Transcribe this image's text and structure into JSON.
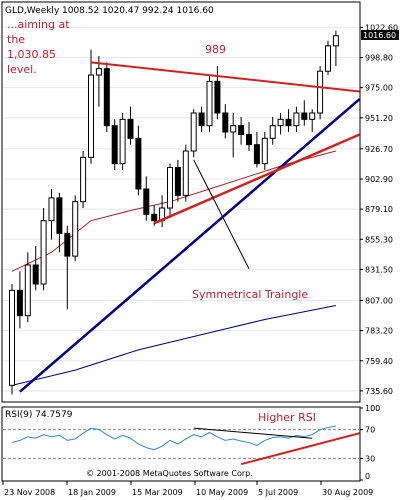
{
  "chart_data": {
    "type": "candlestick",
    "header": {
      "symbol": "GLD,Weekly",
      "ohlc": "1008.52 1020.47 992.24 1016.60"
    },
    "price_axis": {
      "ticks": [
        1022.6,
        998.8,
        975.0,
        951.2,
        926.7,
        902.9,
        879.1,
        855.3,
        831.5,
        807.0,
        783.2,
        759.4,
        735.6
      ],
      "tick_labels": [
        "1022.60",
        "998.80",
        "975.00",
        "951.20",
        "926.70",
        "902.90",
        "879.10",
        "855.30",
        "831.50",
        "807.00",
        "783.20",
        "759.40",
        "735.60"
      ],
      "ylim": [
        730,
        1030
      ],
      "last_price": 1016.6,
      "last_price_label": "1016.60"
    },
    "x_axis": {
      "labels": [
        "23 Nov 2008",
        "18 Jan 2009",
        "15 Mar 2009",
        "10 May 2009",
        "5 Jul 2009",
        "30 Aug 2009"
      ]
    },
    "candles": [
      {
        "o": 740,
        "h": 820,
        "l": 733,
        "c": 815
      },
      {
        "o": 815,
        "h": 830,
        "l": 785,
        "c": 795
      },
      {
        "o": 795,
        "h": 845,
        "l": 790,
        "c": 835
      },
      {
        "o": 835,
        "h": 850,
        "l": 815,
        "c": 820
      },
      {
        "o": 820,
        "h": 880,
        "l": 815,
        "c": 870
      },
      {
        "o": 870,
        "h": 895,
        "l": 855,
        "c": 888
      },
      {
        "o": 888,
        "h": 892,
        "l": 845,
        "c": 860
      },
      {
        "o": 860,
        "h": 866,
        "l": 800,
        "c": 842
      },
      {
        "o": 842,
        "h": 890,
        "l": 838,
        "c": 885
      },
      {
        "o": 885,
        "h": 925,
        "l": 880,
        "c": 920
      },
      {
        "o": 920,
        "h": 1005,
        "l": 915,
        "c": 985
      },
      {
        "o": 985,
        "h": 1000,
        "l": 960,
        "c": 990
      },
      {
        "o": 990,
        "h": 995,
        "l": 940,
        "c": 945
      },
      {
        "o": 945,
        "h": 950,
        "l": 910,
        "c": 915
      },
      {
        "o": 915,
        "h": 955,
        "l": 910,
        "c": 950
      },
      {
        "o": 950,
        "h": 960,
        "l": 930,
        "c": 935
      },
      {
        "o": 935,
        "h": 945,
        "l": 890,
        "c": 895
      },
      {
        "o": 895,
        "h": 905,
        "l": 870,
        "c": 875
      },
      {
        "o": 875,
        "h": 882,
        "l": 866,
        "c": 870
      },
      {
        "o": 870,
        "h": 890,
        "l": 865,
        "c": 880
      },
      {
        "o": 880,
        "h": 915,
        "l": 872,
        "c": 912
      },
      {
        "o": 912,
        "h": 918,
        "l": 885,
        "c": 890
      },
      {
        "o": 890,
        "h": 930,
        "l": 885,
        "c": 925
      },
      {
        "o": 925,
        "h": 958,
        "l": 920,
        "c": 955
      },
      {
        "o": 955,
        "h": 960,
        "l": 940,
        "c": 945
      },
      {
        "o": 945,
        "h": 985,
        "l": 940,
        "c": 980
      },
      {
        "o": 980,
        "h": 992,
        "l": 950,
        "c": 955
      },
      {
        "o": 955,
        "h": 962,
        "l": 935,
        "c": 940
      },
      {
        "o": 940,
        "h": 955,
        "l": 920,
        "c": 945
      },
      {
        "o": 945,
        "h": 952,
        "l": 930,
        "c": 938
      },
      {
        "o": 938,
        "h": 948,
        "l": 925,
        "c": 930
      },
      {
        "o": 930,
        "h": 940,
        "l": 912,
        "c": 915
      },
      {
        "o": 915,
        "h": 940,
        "l": 910,
        "c": 935
      },
      {
        "o": 935,
        "h": 952,
        "l": 930,
        "c": 945
      },
      {
        "o": 945,
        "h": 955,
        "l": 938,
        "c": 950
      },
      {
        "o": 950,
        "h": 958,
        "l": 940,
        "c": 945
      },
      {
        "o": 945,
        "h": 960,
        "l": 940,
        "c": 955
      },
      {
        "o": 955,
        "h": 965,
        "l": 945,
        "c": 950
      },
      {
        "o": 950,
        "h": 958,
        "l": 940,
        "c": 955
      },
      {
        "o": 955,
        "h": 992,
        "l": 950,
        "c": 988
      },
      {
        "o": 988,
        "h": 1012,
        "l": 985,
        "c": 1008
      },
      {
        "o": 1008,
        "h": 1020,
        "l": 992,
        "c": 1016
      }
    ],
    "moving_averages": [
      {
        "color": "#b02020",
        "points": [
          [
            0,
            830
          ],
          [
            5,
            845
          ],
          [
            10,
            870
          ],
          [
            15,
            878
          ],
          [
            20,
            885
          ],
          [
            25,
            895
          ],
          [
            30,
            905
          ],
          [
            35,
            915
          ],
          [
            41,
            925
          ]
        ]
      },
      {
        "color": "#00008b",
        "points": [
          [
            0,
            740
          ],
          [
            8,
            752
          ],
          [
            16,
            768
          ],
          [
            24,
            780
          ],
          [
            32,
            792
          ],
          [
            41,
            803
          ]
        ]
      }
    ],
    "trendlines": [
      {
        "color": "#d42020",
        "from": [
          10,
          995
        ],
        "to": [
          44,
          972
        ],
        "width": 2
      },
      {
        "color": "#00008b",
        "from": [
          1,
          735
        ],
        "to": [
          44,
          966
        ],
        "width": 2.5
      },
      {
        "color": "#d42020",
        "from": [
          18,
          868
        ],
        "to": [
          44,
          938
        ],
        "width": 2.5
      },
      {
        "color": "#000000",
        "from": [
          23,
          918
        ],
        "to": [
          30,
          832
        ],
        "width": 1
      }
    ],
    "annotations": {
      "aiming": [
        "...aiming at",
        "the",
        "1,030.85",
        "level."
      ],
      "peak": "989",
      "triangle": "Symmetrical Traingle",
      "higher_rsi": "Higher RSI"
    },
    "rsi": {
      "title": "RSI(9) 74.7579",
      "ylim": [
        0,
        100
      ],
      "levels": [
        70,
        30
      ],
      "tick_labels": [
        "100",
        "70",
        "30",
        "0"
      ],
      "values": [
        52,
        55,
        60,
        58,
        63,
        60,
        62,
        55,
        57,
        65,
        72,
        70,
        63,
        57,
        62,
        58,
        50,
        45,
        42,
        47,
        55,
        50,
        57,
        63,
        60,
        66,
        60,
        55,
        57,
        54,
        52,
        48,
        55,
        59,
        60,
        58,
        62,
        60,
        63,
        70,
        73,
        75
      ],
      "trendline": {
        "color": "#d42020",
        "from": [
          29,
          22
        ],
        "to": [
          44,
          65
        ]
      },
      "black_line": {
        "from": [
          23,
          72
        ],
        "to": [
          38,
          58
        ]
      }
    },
    "copyright": "© 2001-2008 MetaQuotes Software Corp."
  },
  "colors": {
    "annotation": "#c0202a",
    "candle": "#000000",
    "rsi_line": "#2e86de"
  }
}
